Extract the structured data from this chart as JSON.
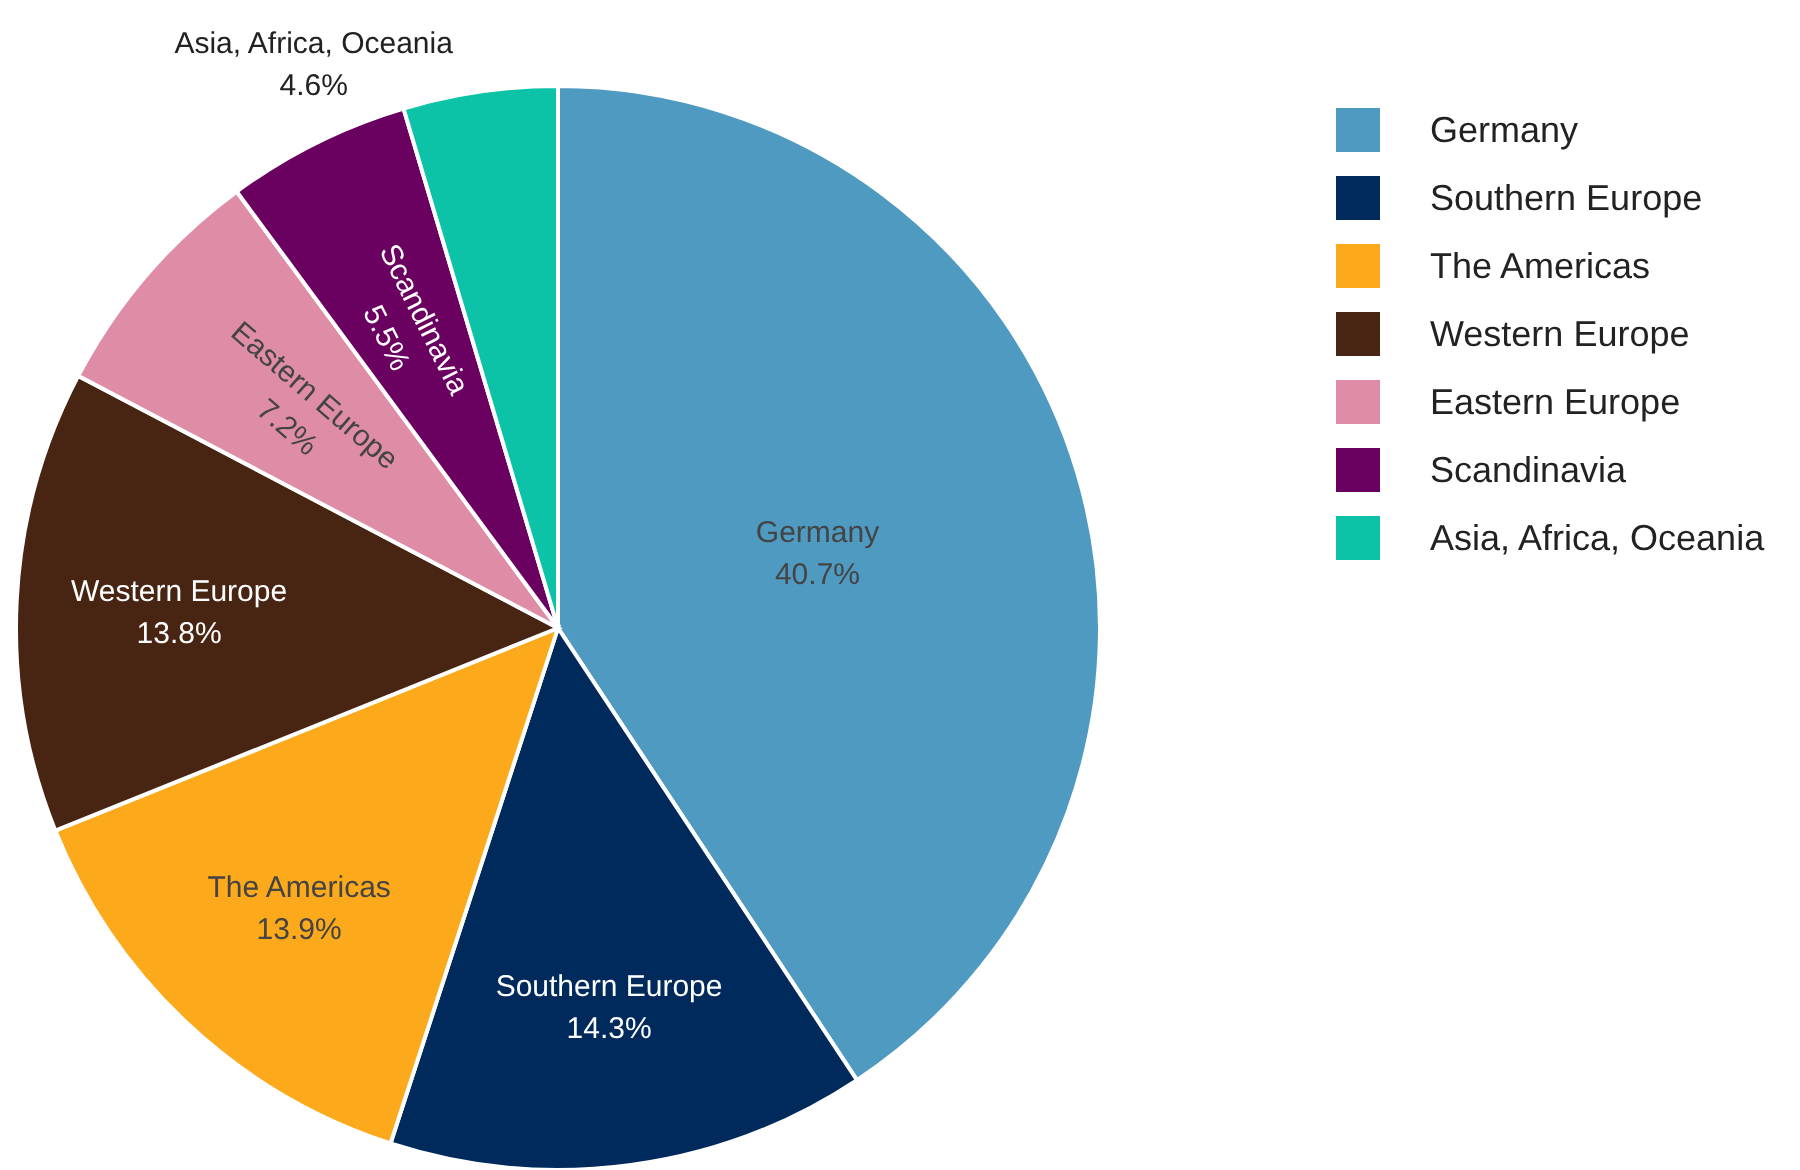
{
  "chart_data": {
    "type": "pie",
    "categories": [
      "Germany",
      "Southern Europe",
      "The Americas",
      "Western Europe",
      "Eastern Europe",
      "Scandinavia",
      "Asia, Africa, Oceania"
    ],
    "values": [
      40.7,
      14.3,
      13.9,
      13.8,
      7.2,
      5.5,
      4.6
    ],
    "value_labels": [
      "40.7%",
      "14.3%",
      "13.9%",
      "13.8%",
      "7.2%",
      "5.5%",
      "4.6%"
    ],
    "colors": [
      "#4f9ac1",
      "#012a5c",
      "#fda91c",
      "#482512",
      "#df8da6",
      "#6a0060",
      "#0cc3a8"
    ],
    "legend": "top right"
  }
}
